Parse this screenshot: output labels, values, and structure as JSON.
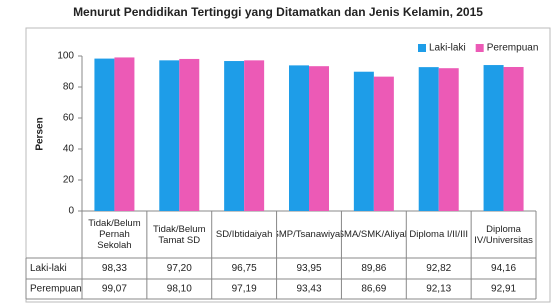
{
  "chart_data": {
    "type": "bar",
    "title": "Menurut Pendidikan Tertinggi yang Ditamatkan dan Jenis Kelamin, 2015",
    "y_label": "Persen",
    "categories": [
      "Tidak/Belum Pernah Sekolah",
      "Tidak/Belum Tamat SD",
      "SD/Ibtidaiyah",
      "SMP/Tsanawiyah",
      "SMA/SMK/Aliyah",
      "Diploma I/II/III",
      "Diploma IV/Universitas"
    ],
    "series": [
      {
        "name": "Laki-laki",
        "color": "#1e9de8",
        "values": [
          98.33,
          97.2,
          96.75,
          93.95,
          89.86,
          92.82,
          94.16
        ],
        "value_labels": [
          "98,33",
          "97,20",
          "96,75",
          "93,95",
          "89,86",
          "92,82",
          "94,16"
        ]
      },
      {
        "name": "Perempuan",
        "color": "#ec5ab6",
        "values": [
          99.07,
          98.1,
          97.19,
          93.43,
          86.69,
          92.13,
          92.91
        ],
        "value_labels": [
          "99,07",
          "98,10",
          "97,19",
          "93,43",
          "86,69",
          "92,13",
          "92,91"
        ]
      }
    ],
    "ylim": [
      0,
      100
    ],
    "yticks": [
      0,
      20,
      40,
      60,
      80,
      100
    ],
    "grid": false,
    "legend": "top-right"
  }
}
